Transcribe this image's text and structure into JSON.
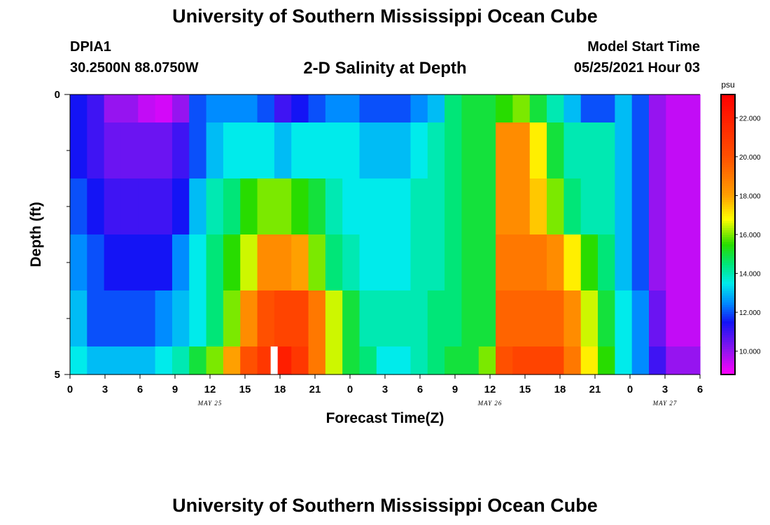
{
  "header": {
    "title": "University of Southern Mississippi Ocean Cube",
    "station_id": "DPIA1",
    "station_coords": "30.2500N  88.0750W",
    "chart_title": "2-D Salinity at Depth",
    "model_start_label": "Model Start Time",
    "model_start_value": "05/25/2021 Hour 03"
  },
  "footer": {
    "title": "University of Southern Mississippi Ocean Cube"
  },
  "chart_data": {
    "type": "heatmap",
    "title": "2-D Salinity at Depth",
    "xlabel": "Forecast Time(Z)",
    "ylabel": "Depth (ft)",
    "ylim": [
      0,
      5
    ],
    "y_tick_labels": [
      "0",
      "5"
    ],
    "x_tick_labels": [
      "0",
      "3",
      "6",
      "9",
      "12",
      "15",
      "18",
      "21",
      "0",
      "3",
      "6",
      "9",
      "12",
      "15",
      "18",
      "21",
      "0",
      "3",
      "6"
    ],
    "date_labels": [
      {
        "label": "MAY 25",
        "hour": 12
      },
      {
        "label": "MAY 26",
        "hour": 36
      },
      {
        "label": "MAY 27",
        "hour": 51
      }
    ],
    "x_range_hours": [
      0,
      54
    ],
    "hour_step": 3,
    "depth_rows": [
      "0-0.5",
      "0.5-1.5",
      "1.5-2.5",
      "2.5-3.5",
      "3.5-4.5",
      "4.5-5"
    ],
    "salinity_psu": [
      [
        11.5,
        11.0,
        10.0,
        10.0,
        9.5,
        9.3,
        10.0,
        12.0,
        12.5,
        12.5,
        12.5,
        12.0,
        11.0,
        11.5,
        12.0,
        12.5,
        12.5,
        12.0,
        12.0,
        12.0,
        12.5,
        13.0,
        14.5,
        15.0,
        15.0,
        15.5,
        16.0,
        15.0,
        14.0,
        13.0,
        12.0,
        12.0,
        13.0,
        12.0,
        10.0,
        9.5,
        9.5
      ],
      [
        11.5,
        11.0,
        10.5,
        10.5,
        10.5,
        10.5,
        11.0,
        12.0,
        13.0,
        13.5,
        13.5,
        13.5,
        13.0,
        13.5,
        13.5,
        13.5,
        13.5,
        13.0,
        13.0,
        13.0,
        13.5,
        14.0,
        14.5,
        15.0,
        15.0,
        18.5,
        18.5,
        17.0,
        15.0,
        14.0,
        14.0,
        14.0,
        13.0,
        12.0,
        10.0,
        9.5,
        9.5
      ],
      [
        12.0,
        11.5,
        11.0,
        11.0,
        11.0,
        11.0,
        11.5,
        13.0,
        14.0,
        14.5,
        15.5,
        16.0,
        16.0,
        15.5,
        15.0,
        14.0,
        13.5,
        13.5,
        13.5,
        13.5,
        14.0,
        14.0,
        14.5,
        15.0,
        15.0,
        18.5,
        18.5,
        17.5,
        16.0,
        14.5,
        14.0,
        14.0,
        13.0,
        12.0,
        10.0,
        9.5,
        9.5
      ],
      [
        12.5,
        12.0,
        11.5,
        11.5,
        11.5,
        11.5,
        12.5,
        13.5,
        14.5,
        15.5,
        16.5,
        18.5,
        18.5,
        18.0,
        16.0,
        14.5,
        14.0,
        13.5,
        13.5,
        13.5,
        14.0,
        14.0,
        14.5,
        15.0,
        15.0,
        19.0,
        19.0,
        19.0,
        18.5,
        17.0,
        15.5,
        14.5,
        13.0,
        12.0,
        10.0,
        9.5,
        9.5
      ],
      [
        13.0,
        12.0,
        12.0,
        12.0,
        12.0,
        12.5,
        13.0,
        13.5,
        14.5,
        16.0,
        18.5,
        20.0,
        20.5,
        20.5,
        19.0,
        16.5,
        15.0,
        14.0,
        14.0,
        14.0,
        14.0,
        14.5,
        14.5,
        15.0,
        15.0,
        19.5,
        19.5,
        19.5,
        19.5,
        18.5,
        16.5,
        15.0,
        13.5,
        12.5,
        10.5,
        9.5,
        9.5
      ],
      [
        13.5,
        13.0,
        13.0,
        13.0,
        13.0,
        13.5,
        14.0,
        15.0,
        16.0,
        18.0,
        20.0,
        21.0,
        22.0,
        21.0,
        19.0,
        16.5,
        15.0,
        14.5,
        13.5,
        13.5,
        14.0,
        14.5,
        15.0,
        15.0,
        16.0,
        20.0,
        20.5,
        20.5,
        20.5,
        19.0,
        17.0,
        15.5,
        13.5,
        12.5,
        11.0,
        10.0,
        10.0
      ]
    ],
    "colorbar": {
      "unit": "psu",
      "range": [
        8.8,
        23.2
      ],
      "tick_labels": [
        "10.000",
        "12.000",
        "14.000",
        "16.000",
        "18.000",
        "20.000",
        "22.000"
      ],
      "tick_values": [
        10,
        12,
        14,
        16,
        18,
        20,
        22
      ]
    },
    "missing_cell": {
      "hour": 17.5,
      "row": 5
    }
  }
}
